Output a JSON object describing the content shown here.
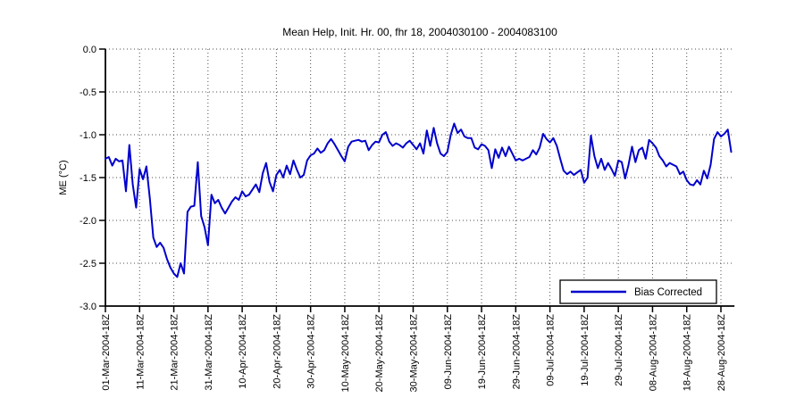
{
  "title": "Mean Help, Init. Hr. 00, fhr 18, 2004030100 - 2004083100",
  "colors": {
    "line": "#0000CC",
    "axis": "#000000",
    "grid": "#4d4d4d",
    "background": "#ffffff",
    "legend_border": "#000000"
  },
  "chart_data": {
    "type": "line",
    "title": "Mean Help, Init. Hr. 00, fhr 18, 2004030100 - 2004083100",
    "xlabel": "",
    "ylabel": "ME (°C)",
    "ylim": [
      -3.0,
      0.0
    ],
    "yticks": [
      0.0,
      -0.5,
      -1.0,
      -1.5,
      -2.0,
      -2.5,
      -3.0
    ],
    "ytick_labels": [
      "0.0",
      "-0.5",
      "-1.0",
      "-1.5",
      "-2.0",
      "-2.5",
      "-3.0"
    ],
    "xtick_days": [
      0,
      10,
      20,
      30,
      40,
      50,
      60,
      70,
      80,
      90,
      100,
      110,
      120,
      130,
      140,
      150,
      160,
      170,
      180
    ],
    "xtick_labels": [
      "01-Mar-2004-18Z",
      "11-Mar-2004-18Z",
      "21-Mar-2004-18Z",
      "31-Mar-2004-18Z",
      "10-Apr-2004-18Z",
      "20-Apr-2004-18Z",
      "30-Apr-2004-18Z",
      "10-May-2004-18Z",
      "20-May-2004-18Z",
      "30-May-2004-18Z",
      "09-Jun-2004-18Z",
      "19-Jun-2004-18Z",
      "29-Jun-2004-18Z",
      "09-Jul-2004-18Z",
      "19-Jul-2004-18Z",
      "29-Jul-2004-18Z",
      "08-Aug-2004-18Z",
      "18-Aug-2004-18Z",
      "28-Aug-2004-18Z"
    ],
    "grid": true,
    "legend": {
      "position": "bottom-right",
      "entries": [
        {
          "label": "Bias Corrected",
          "color": "#0000CC"
        }
      ]
    },
    "series": [
      {
        "name": "Bias Corrected",
        "color": "#0000CC",
        "start_date": "01-Mar-2004-18Z",
        "end_date": "31-Aug-2004",
        "interval_days": 1,
        "values": [
          -1.28,
          -1.26,
          -1.36,
          -1.28,
          -1.31,
          -1.3,
          -1.66,
          -1.12,
          -1.58,
          -1.85,
          -1.4,
          -1.52,
          -1.37,
          -1.75,
          -2.2,
          -2.31,
          -2.26,
          -2.32,
          -2.45,
          -2.55,
          -2.62,
          -2.66,
          -2.5,
          -2.62,
          -1.9,
          -1.84,
          -1.83,
          -1.32,
          -1.95,
          -2.08,
          -2.29,
          -1.7,
          -1.8,
          -1.76,
          -1.85,
          -1.92,
          -1.85,
          -1.78,
          -1.73,
          -1.76,
          -1.66,
          -1.72,
          -1.7,
          -1.64,
          -1.58,
          -1.67,
          -1.45,
          -1.33,
          -1.55,
          -1.66,
          -1.47,
          -1.41,
          -1.5,
          -1.36,
          -1.46,
          -1.3,
          -1.41,
          -1.5,
          -1.47,
          -1.3,
          -1.24,
          -1.22,
          -1.16,
          -1.21,
          -1.18,
          -1.1,
          -1.05,
          -1.11,
          -1.18,
          -1.25,
          -1.31,
          -1.14,
          -1.08,
          -1.07,
          -1.06,
          -1.08,
          -1.07,
          -1.18,
          -1.12,
          -1.08,
          -1.09,
          -1.0,
          -0.97,
          -1.08,
          -1.13,
          -1.1,
          -1.12,
          -1.15,
          -1.1,
          -1.07,
          -1.12,
          -1.17,
          -1.1,
          -1.22,
          -0.95,
          -1.13,
          -0.92,
          -1.1,
          -1.22,
          -1.25,
          -1.2,
          -1.0,
          -0.87,
          -0.98,
          -0.94,
          -1.02,
          -1.04,
          -1.04,
          -1.15,
          -1.17,
          -1.11,
          -1.13,
          -1.18,
          -1.39,
          -1.17,
          -1.27,
          -1.15,
          -1.25,
          -1.14,
          -1.22,
          -1.3,
          -1.28,
          -1.3,
          -1.28,
          -1.26,
          -1.18,
          -1.23,
          -1.15,
          -0.99,
          -1.05,
          -1.09,
          -1.04,
          -1.13,
          -1.28,
          -1.42,
          -1.46,
          -1.43,
          -1.47,
          -1.44,
          -1.41,
          -1.56,
          -1.5,
          -1.01,
          -1.25,
          -1.39,
          -1.28,
          -1.41,
          -1.33,
          -1.4,
          -1.48,
          -1.3,
          -1.32,
          -1.51,
          -1.35,
          -1.14,
          -1.32,
          -1.18,
          -1.15,
          -1.28,
          -1.06,
          -1.1,
          -1.15,
          -1.25,
          -1.3,
          -1.37,
          -1.33,
          -1.35,
          -1.37,
          -1.46,
          -1.43,
          -1.53,
          -1.58,
          -1.59,
          -1.53,
          -1.58,
          -1.42,
          -1.51,
          -1.35,
          -1.05,
          -0.97,
          -1.02,
          -0.99,
          -0.94,
          -1.2
        ]
      }
    ]
  }
}
